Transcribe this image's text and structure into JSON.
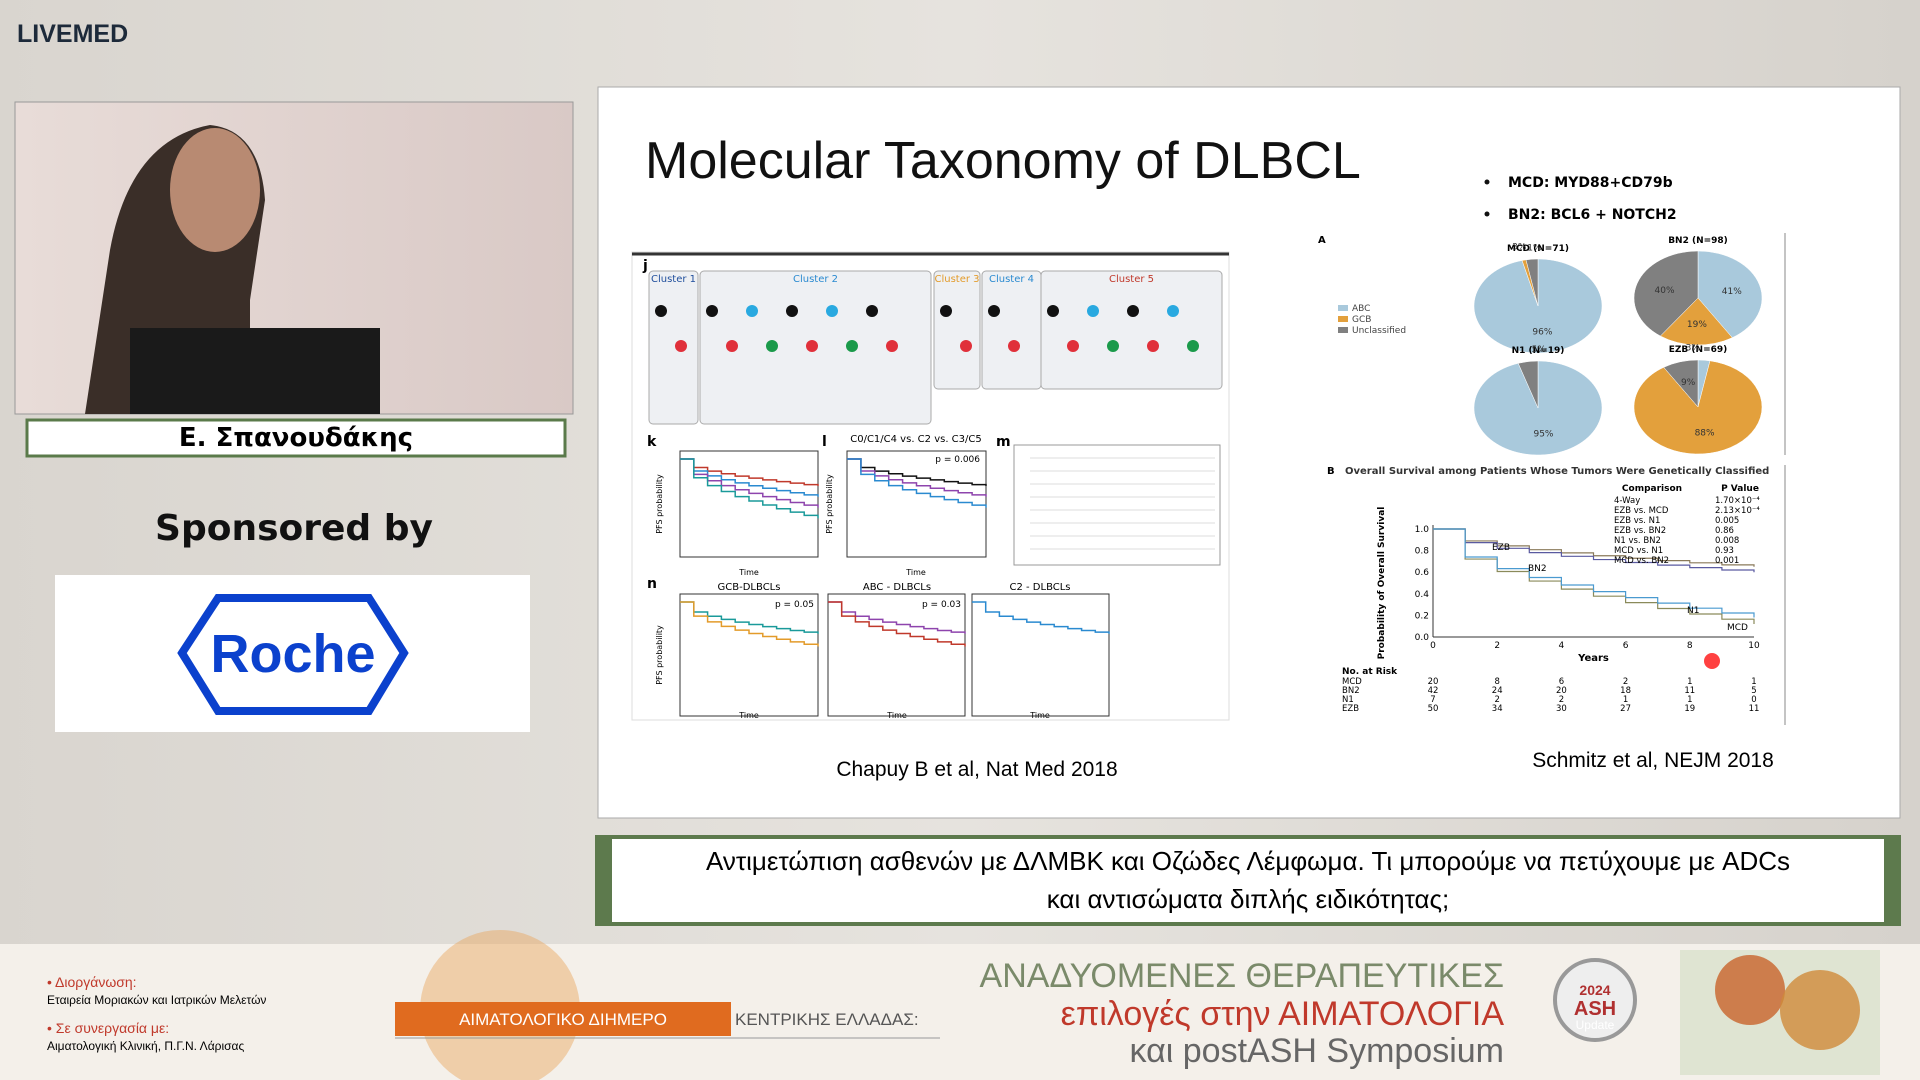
{
  "header": {
    "logo": "LIVEMED"
  },
  "speaker": {
    "name": "Ε. Σπανουδάκης"
  },
  "sponsor": {
    "label": "Sponsored by",
    "name": "Roche"
  },
  "slide": {
    "title": "Molecular Taxonomy of DLBCL",
    "bullets": [
      "MCD: MYD88+CD79b",
      "BN2: BCL6 + NOTCH2"
    ],
    "figure_left": {
      "panels": [
        "j",
        "k",
        "l",
        "m",
        "n"
      ],
      "clusters": [
        "Cluster 1",
        "Cluster 2",
        "Cluster 3",
        "Cluster 4",
        "Cluster 5"
      ],
      "l_title": "C0/C1/C4 vs. C2 vs. C3/C5",
      "l_p": "p = 0.006",
      "n_titles": [
        "GCB-DLBCLs",
        "ABC - DLBCLs",
        "C2 - DLBCLs"
      ],
      "n_p": [
        "p = 0.05",
        "p = 0.03"
      ],
      "y_label": "PFS probability",
      "x_label": "Time"
    },
    "figure_right": {
      "panel_a": "A",
      "legend": [
        {
          "label": "ABC",
          "color": "#a9c9dc"
        },
        {
          "label": "GCB",
          "color": "#e3a03c"
        },
        {
          "label": "Unclassified",
          "color": "#808080"
        }
      ],
      "pies": [
        {
          "title": "MCD (N=71)",
          "slices": [
            {
              "value": 96,
              "label": "96%",
              "color": "#a9c9dc"
            },
            {
              "value": 1,
              "label": "1%",
              "color": "#e3a03c"
            },
            {
              "value": 3,
              "label": "3%",
              "color": "#808080"
            }
          ]
        },
        {
          "title": "BN2 (N=98)",
          "slices": [
            {
              "value": 41,
              "label": "41%",
              "color": "#a9c9dc"
            },
            {
              "value": 19,
              "label": "19%",
              "color": "#e3a03c"
            },
            {
              "value": 40,
              "label": "40%",
              "color": "#808080"
            }
          ]
        },
        {
          "title": "N1 (N=19)",
          "slices": [
            {
              "value": 95,
              "label": "95%",
              "color": "#a9c9dc"
            },
            {
              "value": 5,
              "label": "5%",
              "color": "#808080"
            }
          ]
        },
        {
          "title": "EZB (N=69)",
          "slices": [
            {
              "value": 3,
              "label": "3%",
              "color": "#a9c9dc"
            },
            {
              "value": 88,
              "label": "88%",
              "color": "#e3a03c"
            },
            {
              "value": 9,
              "label": "9%",
              "color": "#808080"
            }
          ]
        }
      ],
      "panel_b": "B",
      "b_title": "Overall Survival among Patients Whose Tumors Were Genetically Classified",
      "y_label": "Probability of Overall Survival",
      "x_label": "Years",
      "yticks": [
        "0.0",
        "0.2",
        "0.4",
        "0.6",
        "0.8",
        "1.0"
      ],
      "xticks": [
        "0",
        "2",
        "4",
        "6",
        "8",
        "10"
      ],
      "curve_labels": [
        "EZB",
        "BN2",
        "N1",
        "MCD"
      ],
      "comparison_header": [
        "Comparison",
        "P Value"
      ],
      "comparison": [
        [
          "4-Way",
          "1.70×10⁻⁴"
        ],
        [
          "EZB vs. MCD",
          "2.13×10⁻⁴"
        ],
        [
          "EZB vs. N1",
          "0.005"
        ],
        [
          "EZB vs. BN2",
          "0.86"
        ],
        [
          "N1 vs. BN2",
          "0.008"
        ],
        [
          "MCD vs. N1",
          "0.93"
        ],
        [
          "MCD vs. BN2",
          "0.001"
        ]
      ],
      "risk_title": "No. at Risk",
      "risk": [
        [
          "MCD",
          "20",
          "8",
          "6",
          "2",
          "1",
          "1"
        ],
        [
          "BN2",
          "42",
          "24",
          "20",
          "18",
          "11",
          "5"
        ],
        [
          "N1",
          "7",
          "2",
          "2",
          "1",
          "1",
          "0"
        ],
        [
          "EZB",
          "50",
          "34",
          "30",
          "27",
          "19",
          "11"
        ]
      ]
    },
    "citation_left": "Chapuy B et al, Nat Med 2018",
    "citation_right": "Schmitz et al, NEJM 2018"
  },
  "caption": {
    "lines": [
      "Αντιμετώπιση ασθενών με ΔΛΜΒΚ και Οζώδες Λέμφωμα. Τι μπορούμε να πετύχουμε με ADCs",
      "και αντισώματα διπλής ειδικότητας;"
    ]
  },
  "footer": {
    "org_label": "• Διοργάνωση:",
    "org": "Εταιρεία Μοριακών και Ιατρικών Μελετών",
    "coop_label": "• Σε συνεργασία με:",
    "coop": "Αιματολογική Κλινική, Π.Γ.Ν. Λάρισας",
    "banner_a": "ΑΙΜΑΤΟΛΟΓΙΚΟ ΔΙΗΜΕΡΟ",
    "banner_b": "ΚΕΝΤΡΙΚΗΣ ΕΛΛΑΔΑΣ:",
    "title_lines": [
      "ΑΝΑΔΥΟΜΕΝΕΣ ΘΕΡΑΠΕΥΤΙΚΕΣ",
      "επιλογές στην ΑΙΜΑΤΟΛΟΓΙΑ",
      "και postASH Symposium"
    ],
    "badge": [
      "2024",
      "ASH",
      "Update"
    ]
  }
}
